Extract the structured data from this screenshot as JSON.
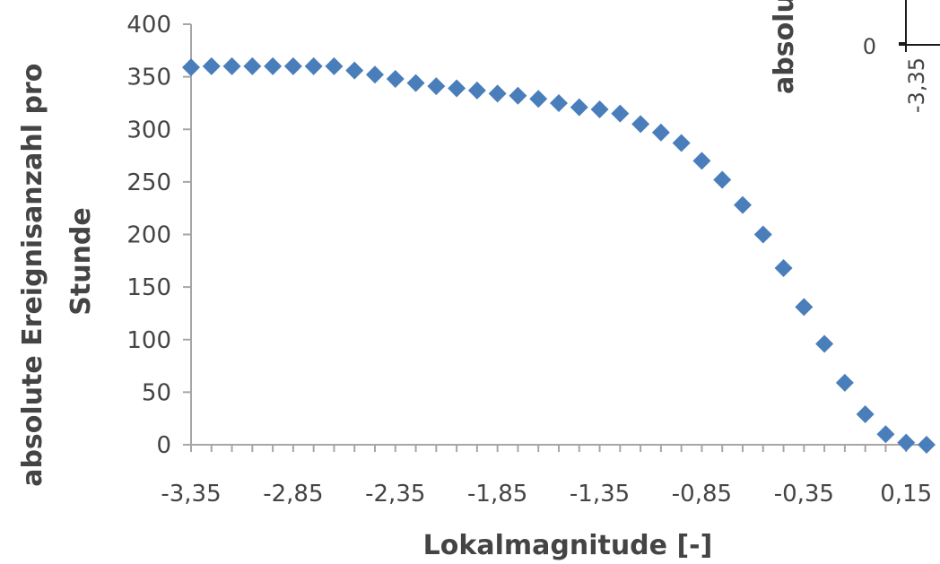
{
  "chart_data": [
    {
      "type": "scatter",
      "xlabel": "Lokalmagnitude  [-]",
      "ylabel_lines": [
        "absolute Ereignisanzahl pro",
        "Stunde"
      ],
      "xlim": [
        -3.35,
        0.25
      ],
      "ylim": [
        0,
        400
      ],
      "x_ticks": [
        -3.35,
        -2.85,
        -2.35,
        -1.85,
        -1.35,
        -0.85,
        -0.35,
        0.15
      ],
      "x_tick_labels": [
        "-3,35",
        "-2,85",
        "-2,35",
        "-1,85",
        "-1,35",
        "-0,85",
        "-0,35",
        "0,15"
      ],
      "y_ticks": [
        0,
        50,
        100,
        150,
        200,
        250,
        300,
        350,
        400
      ],
      "y_tick_labels": [
        "0",
        "50",
        "100",
        "150",
        "200",
        "250",
        "300",
        "350",
        "400"
      ],
      "marker": "diamond",
      "marker_color": "#4a7ebb",
      "grid": false,
      "legend": "none",
      "points": [
        {
          "x": -3.35,
          "y": 359
        },
        {
          "x": -3.25,
          "y": 360
        },
        {
          "x": -3.15,
          "y": 360
        },
        {
          "x": -3.05,
          "y": 360
        },
        {
          "x": -2.95,
          "y": 360
        },
        {
          "x": -2.85,
          "y": 360
        },
        {
          "x": -2.75,
          "y": 360
        },
        {
          "x": -2.65,
          "y": 360
        },
        {
          "x": -2.55,
          "y": 356
        },
        {
          "x": -2.45,
          "y": 352
        },
        {
          "x": -2.35,
          "y": 348
        },
        {
          "x": -2.25,
          "y": 344
        },
        {
          "x": -2.15,
          "y": 341
        },
        {
          "x": -2.05,
          "y": 339
        },
        {
          "x": -1.95,
          "y": 337
        },
        {
          "x": -1.85,
          "y": 334
        },
        {
          "x": -1.75,
          "y": 332
        },
        {
          "x": -1.65,
          "y": 329
        },
        {
          "x": -1.55,
          "y": 325
        },
        {
          "x": -1.45,
          "y": 321
        },
        {
          "x": -1.35,
          "y": 319
        },
        {
          "x": -1.25,
          "y": 315
        },
        {
          "x": -1.15,
          "y": 305
        },
        {
          "x": -1.05,
          "y": 297
        },
        {
          "x": -0.95,
          "y": 287
        },
        {
          "x": -0.85,
          "y": 270
        },
        {
          "x": -0.75,
          "y": 252
        },
        {
          "x": -0.65,
          "y": 228
        },
        {
          "x": -0.55,
          "y": 200
        },
        {
          "x": -0.45,
          "y": 168
        },
        {
          "x": -0.35,
          "y": 131
        },
        {
          "x": -0.25,
          "y": 96
        },
        {
          "x": -0.15,
          "y": 59
        },
        {
          "x": -0.05,
          "y": 29
        },
        {
          "x": 0.05,
          "y": 10
        },
        {
          "x": 0.15,
          "y": 2
        },
        {
          "x": 0.25,
          "y": 0
        }
      ]
    },
    {
      "type": "scatter",
      "partial": true,
      "ylabel_fragment": "absolu",
      "y_tick_labels": [
        "0"
      ],
      "x_tick_labels": [
        "-3,35"
      ]
    }
  ]
}
